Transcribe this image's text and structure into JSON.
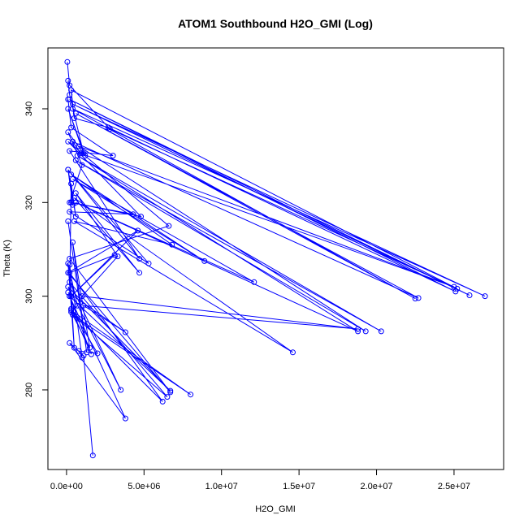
{
  "chart_data": {
    "type": "line",
    "markers": "circle",
    "title": "ATOM1 Southbound H2O_GMI (Log)",
    "xlabel": "H2O_GMI",
    "ylabel": "Theta (K)",
    "xlim": [
      -1200000,
      28200000
    ],
    "ylim": [
      263,
      353
    ],
    "x_ticks": [
      0,
      5000000,
      10000000,
      15000000,
      20000000,
      25000000
    ],
    "x_tick_labels": [
      "0.0e+00",
      "5.0e+06",
      "1.0e+07",
      "1.5e+07",
      "2.0e+07",
      "2.5e+07"
    ],
    "y_ticks": [
      280,
      300,
      320,
      340
    ],
    "y_tick_labels": [
      "280",
      "300",
      "320",
      "340"
    ],
    "series_color": "#0000ff",
    "series": [
      {
        "x": [
          50000,
          200000,
          2800000,
          25200000,
          300000,
          500000,
          2700000,
          25100000,
          200000,
          26000000,
          400000,
          27000000,
          400000,
          22500000,
          600000,
          22700000,
          400000,
          900000,
          25000000,
          800000,
          19300000,
          600000,
          20300000,
          700000,
          18800000,
          600000,
          12100000,
          400000,
          8900000,
          300000,
          6800000,
          500000,
          14600000,
          500000,
          4700000,
          600000,
          3300000,
          1000000,
          18800000,
          1100000,
          3800000,
          100000
        ],
        "y": [
          350,
          345,
          335.7,
          301.6,
          344,
          338,
          336,
          301,
          342,
          300.2,
          341,
          300,
          340,
          299.5,
          339,
          299.6,
          333,
          330.5,
          302,
          332,
          292.5,
          329,
          292.5,
          330,
          292.5,
          320,
          303,
          325,
          307.5,
          326,
          311,
          316,
          288,
          321,
          305,
          322,
          308.5,
          300,
          293,
          298,
          292.3,
          300.8
        ]
      },
      {
        "x": [
          100000,
          300000,
          3000000,
          200000,
          4700000,
          100000,
          5300000,
          200000,
          4300000,
          300000,
          4800000,
          100000,
          6600000,
          200000,
          6700000,
          100000,
          4600000,
          300000,
          3100000,
          200000,
          6200000,
          300000,
          8000000,
          400000,
          6500000,
          200000,
          3500000,
          100000,
          6700000,
          200000,
          3800000,
          200000,
          1100000,
          1700000
        ],
        "y": [
          342,
          336,
          330,
          331,
          308,
          327,
          307,
          318,
          317.5,
          320,
          317,
          333,
          315,
          308,
          279.5,
          305,
          314,
          300,
          308.8,
          305,
          277.5,
          297,
          279,
          296,
          278.5,
          303,
          280,
          302,
          279.8,
          300,
          273.9,
          290,
          287.3,
          266
        ]
      },
      {
        "x": [
          100000,
          200000,
          1100000,
          100000,
          1200000,
          100000,
          1000000,
          200000,
          400000,
          100000,
          600000,
          300000,
          200000,
          1600000,
          300000,
          2000000,
          800000,
          1000000,
          200000,
          500000,
          100000,
          700000,
          300000,
          1500000,
          400000,
          1300000,
          100000
        ],
        "y": [
          346,
          343,
          330.5,
          340,
          330,
          335,
          328,
          320,
          319.5,
          327,
          317,
          324,
          300,
          287.6,
          297.3,
          287.8,
          288.3,
          286.9,
          306.7,
          289,
          307,
          298,
          296.6,
          289,
          311.5,
          288,
          316
        ]
      }
    ]
  }
}
